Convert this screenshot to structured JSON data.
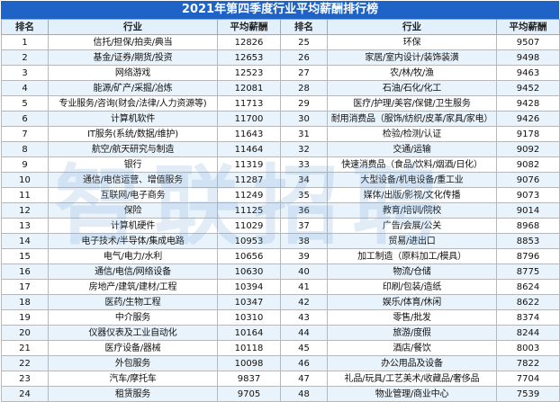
{
  "title": "2021年第四季度行业平均薪酬排行榜",
  "headers": {
    "rank": "排名",
    "industry": "行业",
    "salary": "平均薪酬"
  },
  "watermark": "智联招聘",
  "rows": [
    {
      "left": {
        "rank": "1",
        "industry": "信托/担保/拍卖/典当",
        "salary": "12826"
      },
      "right": {
        "rank": "25",
        "industry": "环保",
        "salary": "9507"
      }
    },
    {
      "left": {
        "rank": "2",
        "industry": "基金/证券/期货/投资",
        "salary": "12653"
      },
      "right": {
        "rank": "26",
        "industry": "家居/室内设计/装饰装潢",
        "salary": "9498"
      }
    },
    {
      "left": {
        "rank": "3",
        "industry": "网络游戏",
        "salary": "12523"
      },
      "right": {
        "rank": "27",
        "industry": "农/林/牧/渔",
        "salary": "9463"
      }
    },
    {
      "left": {
        "rank": "4",
        "industry": "能源/矿产/采掘/冶炼",
        "salary": "12081"
      },
      "right": {
        "rank": "28",
        "industry": "石油/石化/化工",
        "salary": "9452"
      }
    },
    {
      "left": {
        "rank": "5",
        "industry": "专业服务/咨询(财会/法律/人力资源等)",
        "salary": "11713"
      },
      "right": {
        "rank": "29",
        "industry": "医疗/护理/美容/保健/卫生服务",
        "salary": "9428"
      }
    },
    {
      "left": {
        "rank": "6",
        "industry": "计算机软件",
        "salary": "11700"
      },
      "right": {
        "rank": "30",
        "industry": "耐用消费品（服饰/纺织/皮革/家具/家电）",
        "salary": "9426"
      }
    },
    {
      "left": {
        "rank": "7",
        "industry": "IT服务(系统/数据/维护)",
        "salary": "11643"
      },
      "right": {
        "rank": "31",
        "industry": "检验/检测/认证",
        "salary": "9178"
      }
    },
    {
      "left": {
        "rank": "8",
        "industry": "航空/航天研究与制造",
        "salary": "11464"
      },
      "right": {
        "rank": "32",
        "industry": "交通/运输",
        "salary": "9092"
      }
    },
    {
      "left": {
        "rank": "9",
        "industry": "银行",
        "salary": "11319"
      },
      "right": {
        "rank": "33",
        "industry": "快速消费品（食品/饮料/烟酒/日化）",
        "salary": "9082"
      }
    },
    {
      "left": {
        "rank": "10",
        "industry": "通信/电信运营、增值服务",
        "salary": "11287"
      },
      "right": {
        "rank": "34",
        "industry": "大型设备/机电设备/重工业",
        "salary": "9076"
      }
    },
    {
      "left": {
        "rank": "11",
        "industry": "互联网/电子商务",
        "salary": "11249"
      },
      "right": {
        "rank": "35",
        "industry": "媒体/出版/影视/文化传播",
        "salary": "9073"
      }
    },
    {
      "left": {
        "rank": "12",
        "industry": "保险",
        "salary": "11125"
      },
      "right": {
        "rank": "36",
        "industry": "教育/培训/院校",
        "salary": "9014"
      }
    },
    {
      "left": {
        "rank": "13",
        "industry": "计算机硬件",
        "salary": "11029"
      },
      "right": {
        "rank": "37",
        "industry": "广告/会展/公关",
        "salary": "8968"
      }
    },
    {
      "left": {
        "rank": "14",
        "industry": "电子技术/半导体/集成电路",
        "salary": "10953"
      },
      "right": {
        "rank": "38",
        "industry": "贸易/进出口",
        "salary": "8853"
      }
    },
    {
      "left": {
        "rank": "15",
        "industry": "电气/电力/水利",
        "salary": "10656"
      },
      "right": {
        "rank": "39",
        "industry": "加工制造（原料加工/模具）",
        "salary": "8796"
      }
    },
    {
      "left": {
        "rank": "16",
        "industry": "通信/电信/网络设备",
        "salary": "10630"
      },
      "right": {
        "rank": "40",
        "industry": "物流/仓储",
        "salary": "8775"
      }
    },
    {
      "left": {
        "rank": "17",
        "industry": "房地产/建筑/建材/工程",
        "salary": "10394"
      },
      "right": {
        "rank": "41",
        "industry": "印刷/包装/造纸",
        "salary": "8624"
      }
    },
    {
      "left": {
        "rank": "18",
        "industry": "医药/生物工程",
        "salary": "10347"
      },
      "right": {
        "rank": "42",
        "industry": "娱乐/体育/休闲",
        "salary": "8622"
      }
    },
    {
      "left": {
        "rank": "19",
        "industry": "中介服务",
        "salary": "10310"
      },
      "right": {
        "rank": "43",
        "industry": "零售/批发",
        "salary": "8374"
      }
    },
    {
      "left": {
        "rank": "20",
        "industry": "仪器仪表及工业自动化",
        "salary": "10164"
      },
      "right": {
        "rank": "44",
        "industry": "旅游/度假",
        "salary": "8244"
      }
    },
    {
      "left": {
        "rank": "21",
        "industry": "医疗设备/器械",
        "salary": "10118"
      },
      "right": {
        "rank": "45",
        "industry": "酒店/餐饮",
        "salary": "8003"
      }
    },
    {
      "left": {
        "rank": "22",
        "industry": "外包服务",
        "salary": "10098"
      },
      "right": {
        "rank": "46",
        "industry": "办公用品及设备",
        "salary": "7822"
      }
    },
    {
      "left": {
        "rank": "23",
        "industry": "汽车/摩托车",
        "salary": "9837"
      },
      "right": {
        "rank": "47",
        "industry": "礼品/玩具/工艺美术/收藏品/奢侈品",
        "salary": "7704"
      }
    },
    {
      "left": {
        "rank": "24",
        "industry": "租赁服务",
        "salary": "9705"
      },
      "right": {
        "rank": "48",
        "industry": "物业管理/商业中心",
        "salary": "7539"
      }
    }
  ]
}
